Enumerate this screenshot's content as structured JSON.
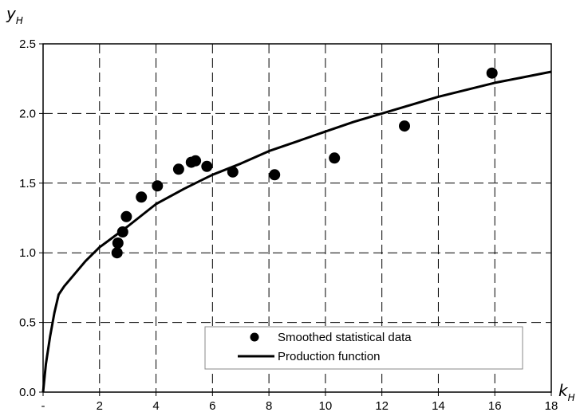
{
  "chart_data": {
    "type": "scatter",
    "xlabel": {
      "main": "k",
      "sub": "H"
    },
    "ylabel": {
      "main": "y",
      "sub": "H"
    },
    "xlim": [
      0,
      18
    ],
    "ylim": [
      0,
      2.5
    ],
    "x_ticks": [
      0,
      2,
      4,
      6,
      8,
      10,
      12,
      14,
      16,
      18
    ],
    "x_tick_labels": [
      "-",
      "2",
      "4",
      "6",
      "8",
      "10",
      "12",
      "14",
      "16",
      "18"
    ],
    "y_ticks": [
      0,
      0.5,
      1.0,
      1.5,
      2.0,
      2.5
    ],
    "y_tick_labels": [
      "0.0",
      "0.5",
      "1.0",
      "1.5",
      "2.0",
      "2.5"
    ],
    "grid": "dashed",
    "legend_position": "bottom-right",
    "series": [
      {
        "name": "Smoothed statistical data",
        "kind": "scatter",
        "color": "#000000",
        "points": [
          [
            2.62,
            1.0
          ],
          [
            2.65,
            1.07
          ],
          [
            2.82,
            1.15
          ],
          [
            2.95,
            1.26
          ],
          [
            3.48,
            1.4
          ],
          [
            4.05,
            1.48
          ],
          [
            4.8,
            1.6
          ],
          [
            5.25,
            1.65
          ],
          [
            5.4,
            1.66
          ],
          [
            5.8,
            1.62
          ],
          [
            6.72,
            1.58
          ],
          [
            8.2,
            1.56
          ],
          [
            10.32,
            1.68
          ],
          [
            12.8,
            1.91
          ],
          [
            15.9,
            2.29
          ]
        ]
      },
      {
        "name": "Production function",
        "kind": "line",
        "color": "#000000",
        "points": [
          [
            0,
            0
          ],
          [
            0.1,
            0.2
          ],
          [
            0.25,
            0.4
          ],
          [
            0.4,
            0.57
          ],
          [
            0.55,
            0.7
          ],
          [
            0.75,
            0.76
          ],
          [
            1.0,
            0.82
          ],
          [
            1.5,
            0.94
          ],
          [
            2.0,
            1.04
          ],
          [
            3.0,
            1.19
          ],
          [
            4.0,
            1.35
          ],
          [
            5.0,
            1.46
          ],
          [
            6.0,
            1.56
          ],
          [
            7.0,
            1.64
          ],
          [
            8.0,
            1.73
          ],
          [
            9.0,
            1.8
          ],
          [
            10.0,
            1.87
          ],
          [
            11.0,
            1.94
          ],
          [
            12.0,
            2.0
          ],
          [
            13.0,
            2.06
          ],
          [
            14.0,
            2.12
          ],
          [
            15.0,
            2.17
          ],
          [
            16.0,
            2.22
          ],
          [
            17.0,
            2.26
          ],
          [
            18.0,
            2.3
          ]
        ]
      }
    ]
  }
}
